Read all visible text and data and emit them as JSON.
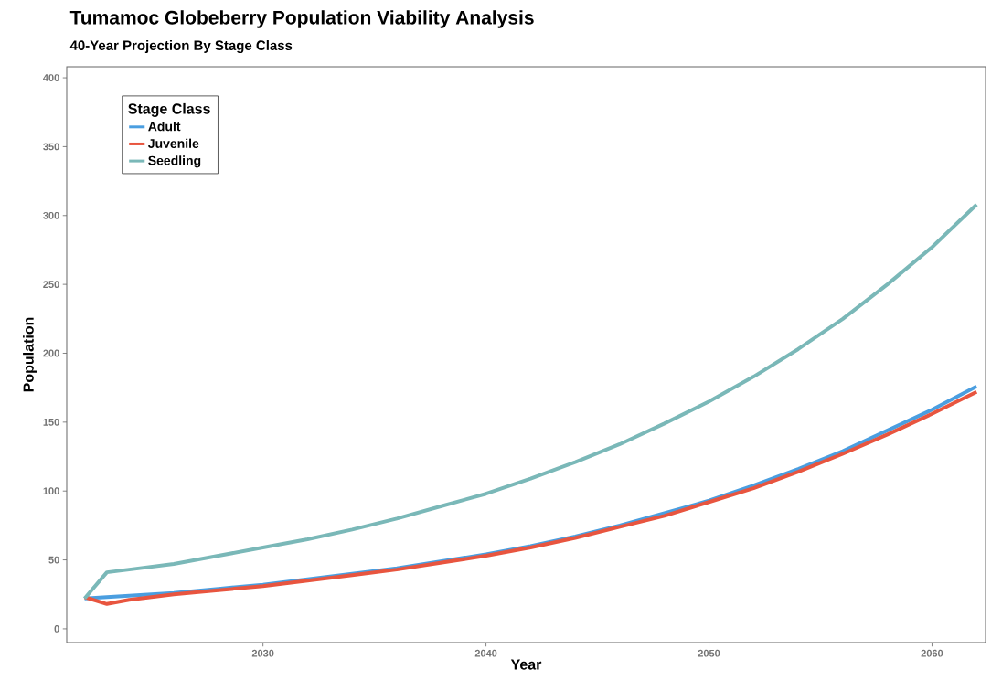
{
  "chart_data": {
    "type": "line",
    "title": "Tumamoc Globeberry Population Viability Analysis",
    "subtitle": "40-Year Projection By Stage Class",
    "xlabel": "Year",
    "ylabel": "Population",
    "legend_title": "Stage Class",
    "x": [
      2022,
      2023,
      2024,
      2026,
      2028,
      2030,
      2032,
      2034,
      2036,
      2038,
      2040,
      2042,
      2044,
      2046,
      2048,
      2050,
      2052,
      2054,
      2056,
      2058,
      2060,
      2062
    ],
    "series": [
      {
        "name": "Adult",
        "color": "#4a9ee0",
        "values": [
          22,
          23,
          24,
          26,
          29,
          32,
          36,
          40,
          44,
          49,
          54,
          60,
          67,
          75,
          84,
          93,
          104,
          116,
          129,
          144,
          159,
          176
        ]
      },
      {
        "name": "Juvenile",
        "color": "#e8553f",
        "values": [
          23,
          18,
          21,
          25,
          28,
          31,
          35,
          39,
          43,
          48,
          53,
          59,
          66,
          74,
          82,
          92,
          102,
          114,
          127,
          141,
          156,
          172
        ]
      },
      {
        "name": "Seedling",
        "color": "#7ab8b8",
        "values": [
          22,
          41,
          43,
          47,
          53,
          59,
          65,
          72,
          80,
          89,
          98,
          109,
          121,
          134,
          149,
          165,
          183,
          203,
          225,
          250,
          277,
          308
        ]
      }
    ],
    "xlim": [
      2021.2,
      2062.4
    ],
    "ylim": [
      -10,
      408
    ],
    "xticks": [
      2030,
      2040,
      2050,
      2060
    ],
    "yticks": [
      0,
      50,
      100,
      150,
      200,
      250,
      300,
      350,
      400
    ],
    "grid": false,
    "legend": "top left",
    "marker": "none",
    "line_style": "solid"
  }
}
